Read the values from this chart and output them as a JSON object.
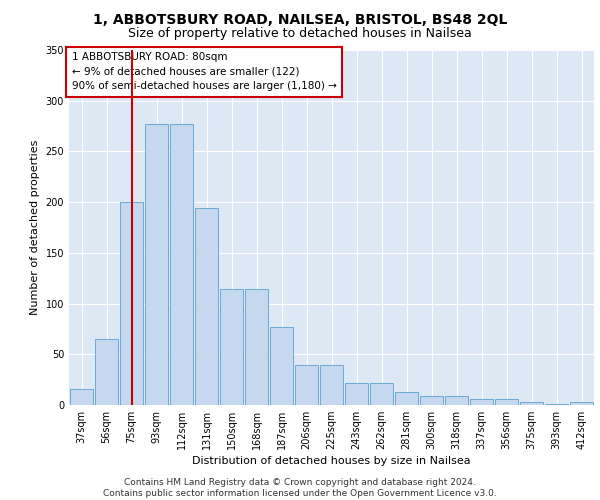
{
  "title_line1": "1, ABBOTSBURY ROAD, NAILSEA, BRISTOL, BS48 2QL",
  "title_line2": "Size of property relative to detached houses in Nailsea",
  "xlabel": "Distribution of detached houses by size in Nailsea",
  "ylabel": "Number of detached properties",
  "categories": [
    "37sqm",
    "56sqm",
    "75sqm",
    "93sqm",
    "112sqm",
    "131sqm",
    "150sqm",
    "168sqm",
    "187sqm",
    "206sqm",
    "225sqm",
    "243sqm",
    "262sqm",
    "281sqm",
    "300sqm",
    "318sqm",
    "337sqm",
    "356sqm",
    "375sqm",
    "393sqm",
    "412sqm"
  ],
  "bar_values": [
    16,
    65,
    200,
    277,
    277,
    194,
    114,
    114,
    77,
    39,
    39,
    22,
    22,
    13,
    9,
    9,
    6,
    6,
    3,
    1,
    3
  ],
  "bar_color": "#c5d8ef",
  "bar_edge_color": "#6aaad4",
  "vline_x": 2,
  "vline_color": "#cc0000",
  "annotation_box_text": "1 ABBOTSBURY ROAD: 80sqm\n← 9% of detached houses are smaller (122)\n90% of semi-detached houses are larger (1,180) →",
  "annotation_box_facecolor": "white",
  "annotation_box_edgecolor": "#cc0000",
  "ylim": [
    0,
    350
  ],
  "yticks": [
    0,
    50,
    100,
    150,
    200,
    250,
    300,
    350
  ],
  "background_color": "#dde8f5",
  "footer_text": "Contains HM Land Registry data © Crown copyright and database right 2024.\nContains public sector information licensed under the Open Government Licence v3.0.",
  "title_fontsize": 10,
  "subtitle_fontsize": 9,
  "axis_label_fontsize": 8,
  "tick_fontsize": 7,
  "annotation_fontsize": 7.5,
  "footer_fontsize": 6.5
}
